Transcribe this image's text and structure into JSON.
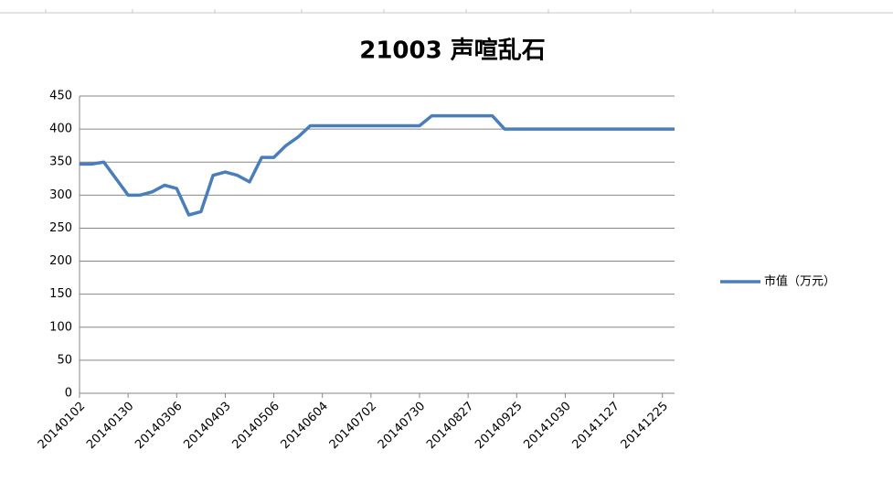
{
  "chart_data": {
    "type": "line",
    "title": "21003 声喧乱石",
    "categories": [
      "20140102",
      null,
      null,
      null,
      "20140130",
      null,
      null,
      null,
      "20140306",
      null,
      null,
      null,
      "20140403",
      null,
      null,
      null,
      "20140506",
      null,
      null,
      null,
      "20140604",
      null,
      null,
      null,
      "20140702",
      null,
      null,
      null,
      "20140730",
      null,
      null,
      null,
      "20140827",
      null,
      null,
      null,
      "20140925",
      null,
      null,
      null,
      "20141030",
      null,
      null,
      null,
      "20141127",
      null,
      null,
      null,
      "20141225",
      null
    ],
    "series": [
      {
        "name": "市值（万元）",
        "color": "#4a7ebb",
        "values": [
          347,
          347,
          350,
          325,
          300,
          300,
          305,
          315,
          310,
          270,
          275,
          330,
          335,
          330,
          320,
          357,
          357,
          375,
          388,
          405,
          405,
          405,
          405,
          405,
          405,
          405,
          405,
          405,
          405,
          420,
          420,
          420,
          420,
          420,
          420,
          400,
          400,
          400,
          400,
          400,
          400,
          400,
          400,
          400,
          400,
          400,
          400,
          400,
          400,
          400
        ]
      }
    ],
    "ylim": [
      0,
      450
    ],
    "yticks": [
      0,
      50,
      100,
      150,
      200,
      250,
      300,
      350,
      400,
      450
    ],
    "grid": true,
    "legend": "right"
  }
}
